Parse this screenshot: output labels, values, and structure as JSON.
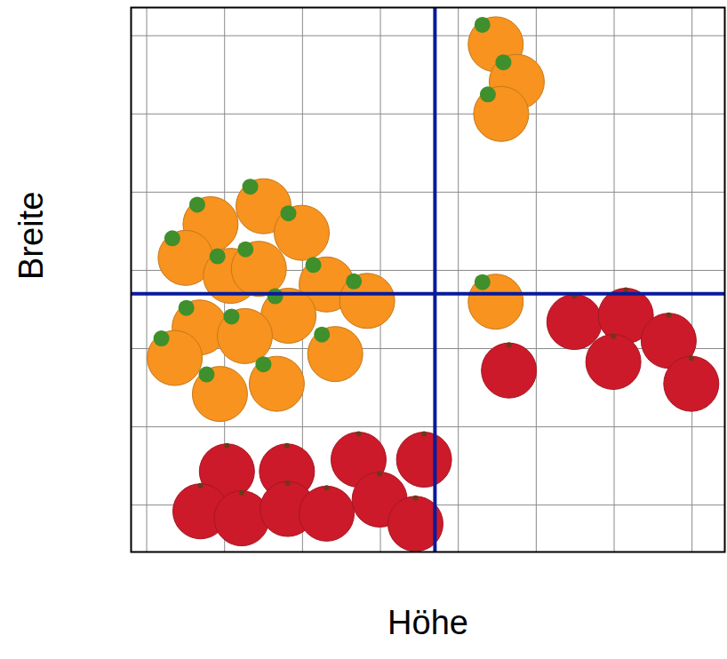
{
  "chart_data": {
    "type": "scatter",
    "xlabel": "Höhe",
    "ylabel": "Breite",
    "xlim": [
      0.8,
      8.42
    ],
    "ylim": [
      0.4,
      7.36
    ],
    "xticks": [
      1,
      2,
      3,
      4,
      5,
      6,
      7,
      8
    ],
    "yticks": [
      1,
      2,
      3,
      4,
      5,
      6,
      7
    ],
    "grid": true,
    "tick_labels": false,
    "series": [
      {
        "color": "#f7931e",
        "marker": "circle",
        "x": [
          5.48,
          5.75,
          5.55,
          2.5,
          1.82,
          2.99,
          1.5,
          2.08,
          2.44,
          3.31,
          3.83,
          1.68,
          2.82,
          2.26,
          3.42,
          1.36,
          2.67,
          1.94,
          5.48
        ],
        "y": [
          6.89,
          6.41,
          6.0,
          4.82,
          4.59,
          4.48,
          4.16,
          3.93,
          4.02,
          3.82,
          3.61,
          3.27,
          3.42,
          3.16,
          2.93,
          2.88,
          2.55,
          2.42,
          3.6
        ]
      },
      {
        "color": "#cc1a2a",
        "marker": "circle",
        "x": [
          2.03,
          2.8,
          3.72,
          4.56,
          1.69,
          2.22,
          2.81,
          3.31,
          3.99,
          4.45,
          5.65,
          6.49,
          7.15,
          6.99,
          7.7,
          7.99
        ],
        "y": [
          1.43,
          1.43,
          1.58,
          1.58,
          0.92,
          0.83,
          0.95,
          0.89,
          1.07,
          0.76,
          2.72,
          3.34,
          3.42,
          2.83,
          3.1,
          2.55
        ]
      }
    ],
    "split_lines": {
      "x": 4.7,
      "y": 3.7,
      "color": "#0a1a9a"
    }
  }
}
